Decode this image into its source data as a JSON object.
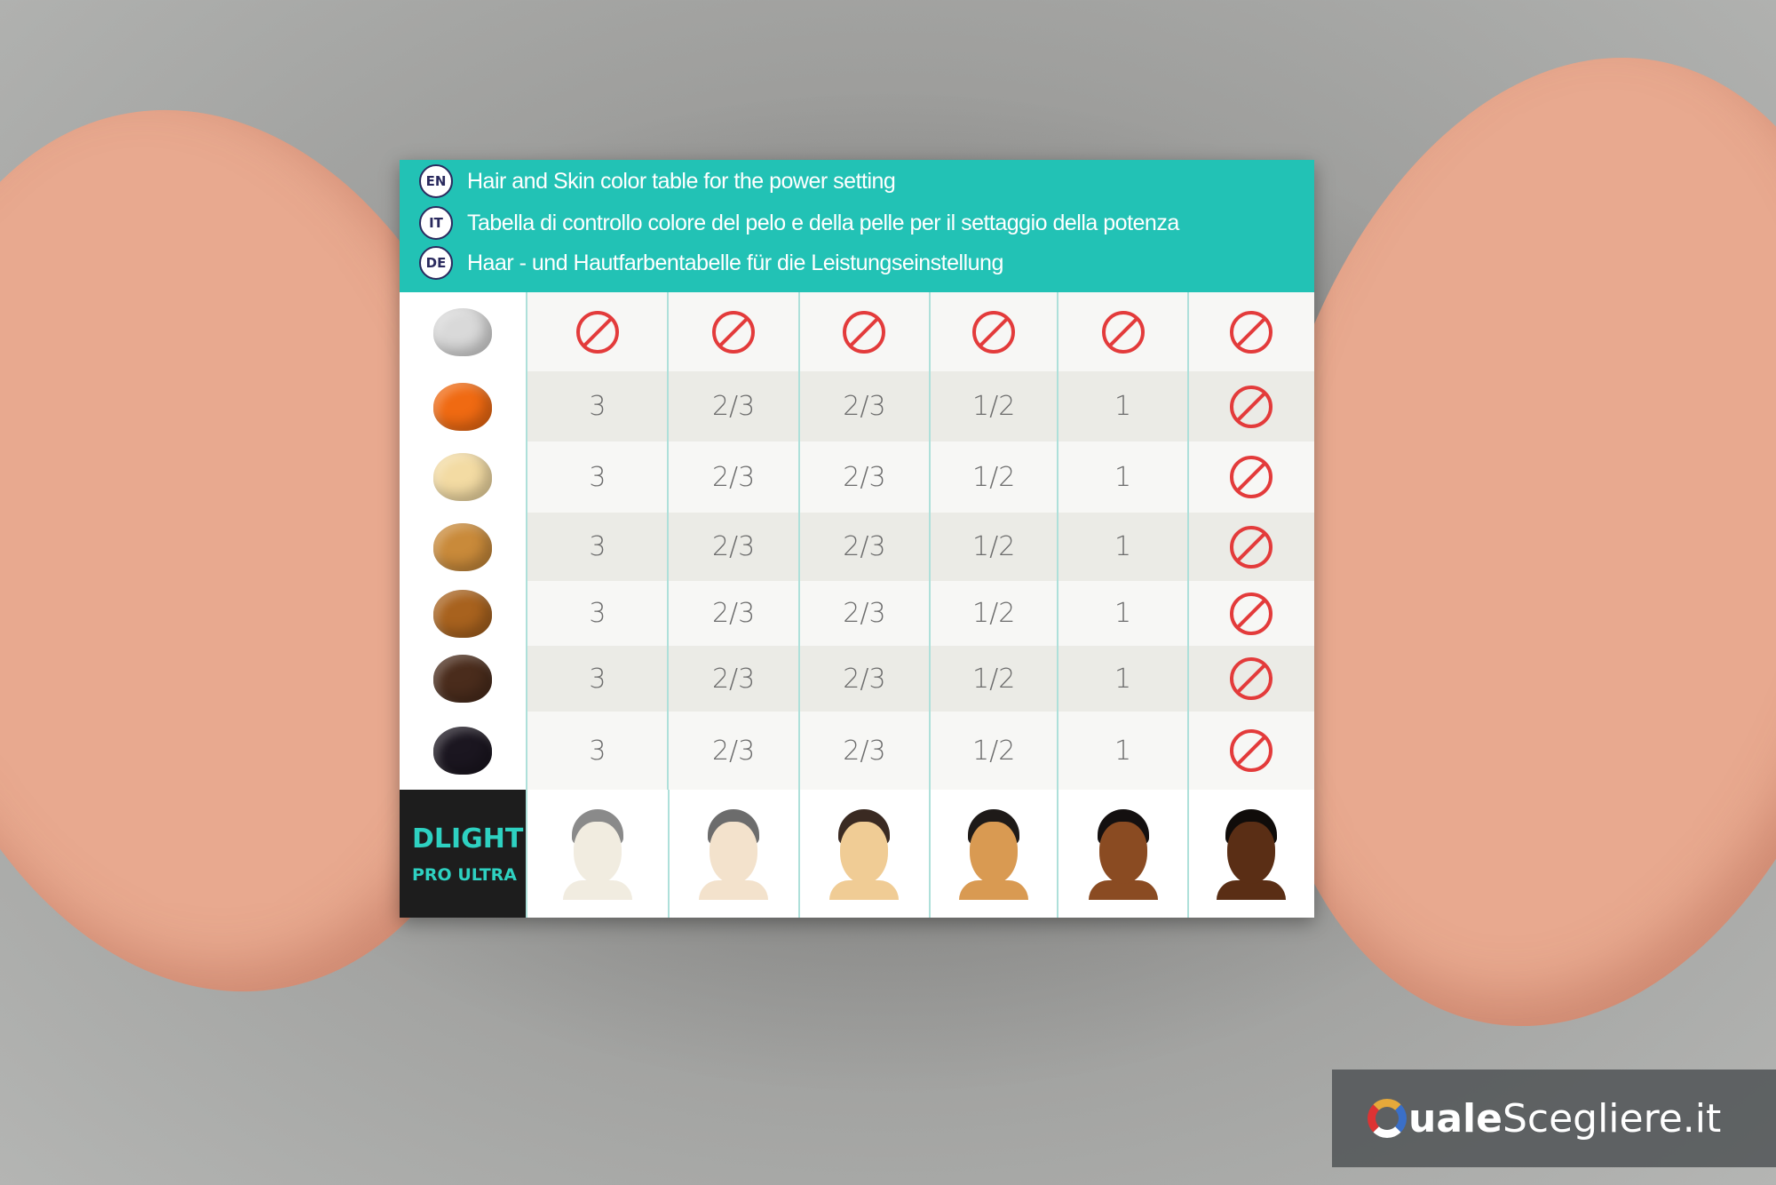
{
  "header": {
    "lines": [
      {
        "lang": "EN",
        "text": "Hair and Skin color table for the power setting"
      },
      {
        "lang": "IT",
        "text": "Tabella di controllo colore del pelo e della pelle per il settaggio della potenza"
      },
      {
        "lang": "DE",
        "text": "Haar - und Hautfarbentabelle für die Leistungseinstellung"
      }
    ],
    "color": "#22c2b5"
  },
  "table": {
    "rows": [
      {
        "hair": "#d9d9d9",
        "values": [
          "no-symbol",
          "no-symbol",
          "no-symbol",
          "no-symbol",
          "no-symbol",
          "no-symbol"
        ]
      },
      {
        "hair": "#f06a12",
        "values": [
          "3",
          "2/3",
          "2/3",
          "1/2",
          "1",
          "no-symbol"
        ]
      },
      {
        "hair": "#f3dba3",
        "values": [
          "3",
          "2/3",
          "2/3",
          "1/2",
          "1",
          "no-symbol"
        ]
      },
      {
        "hair": "#c98a3a",
        "values": [
          "3",
          "2/3",
          "2/3",
          "1/2",
          "1",
          "no-symbol"
        ]
      },
      {
        "hair": "#a8621e",
        "values": [
          "3",
          "2/3",
          "2/3",
          "1/2",
          "1",
          "no-symbol"
        ]
      },
      {
        "hair": "#4a2c1c",
        "values": [
          "3",
          "2/3",
          "2/3",
          "1/2",
          "1",
          "no-symbol"
        ]
      },
      {
        "hair": "#1b1620",
        "values": [
          "3",
          "2/3",
          "2/3",
          "1/2",
          "1",
          "no-symbol"
        ]
      }
    ],
    "skin_tones": [
      {
        "skin": "#f1ece0",
        "hair": "#8a8a8a"
      },
      {
        "skin": "#f3e2cc",
        "hair": "#6c6c6c"
      },
      {
        "skin": "#f0cc95",
        "hair": "#3a2a22"
      },
      {
        "skin": "#d99a52",
        "hair": "#1e1a18"
      },
      {
        "skin": "#8a4b22",
        "hair": "#141010"
      },
      {
        "skin": "#5a2e15",
        "hair": "#100c0a"
      }
    ],
    "no_symbol_color": "#e33b3b"
  },
  "logo": {
    "line1": "DLIGHT",
    "line2": "PRO ULTRA"
  },
  "watermark": {
    "bold": "uale",
    "rest": "Scegliere.it",
    "full": "QualeScegliere.it"
  }
}
